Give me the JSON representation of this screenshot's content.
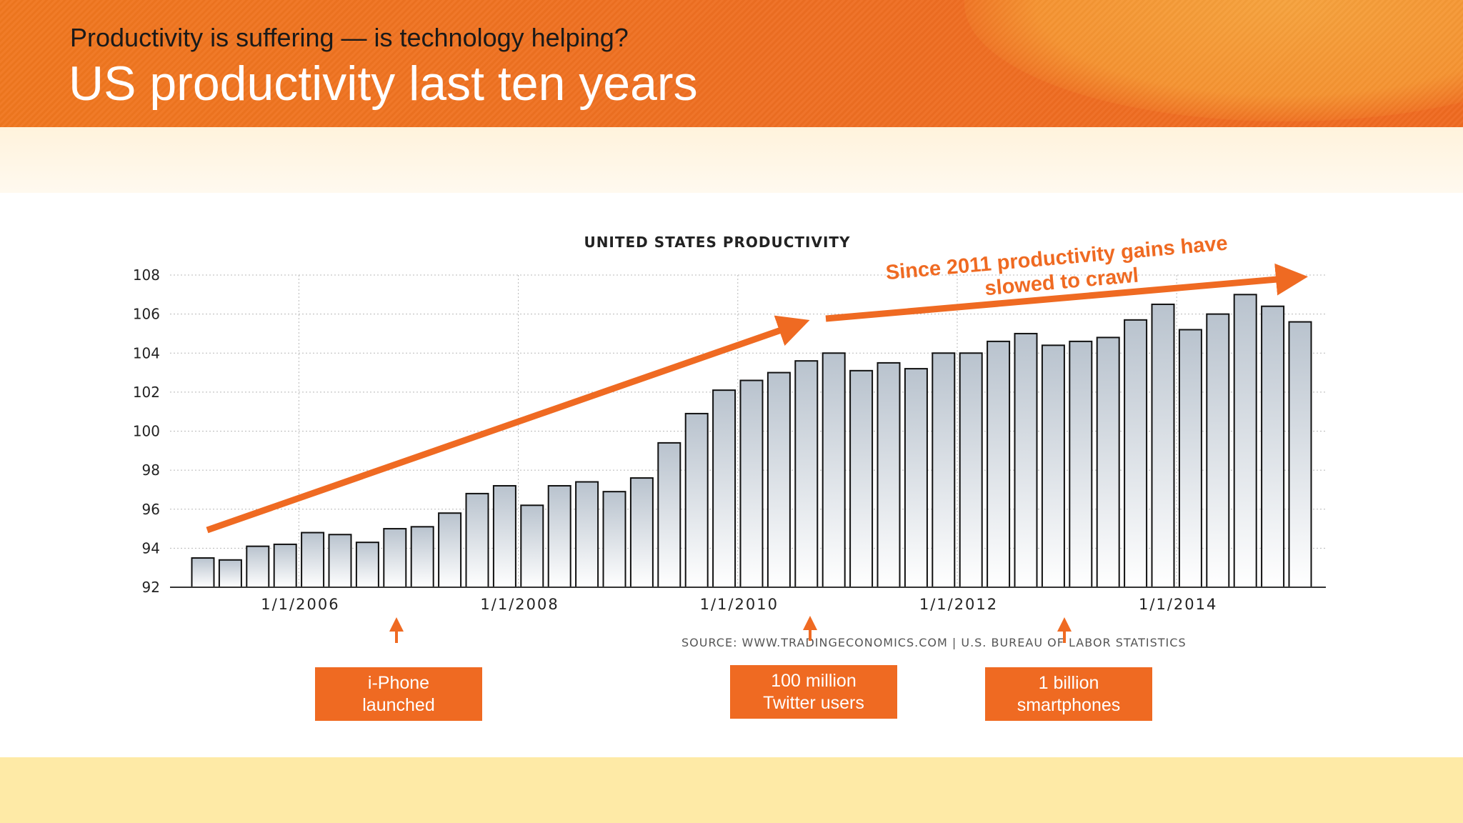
{
  "header": {
    "subtitle": "Productivity is suffering — is technology helping?",
    "title": "US productivity last ten years"
  },
  "chart_data": {
    "type": "bar",
    "title": "UNITED STATES PRODUCTIVITY",
    "source": "SOURCE:  WWW.TRADINGECONOMICS.COM  |  U.S.  BUREAU  OF  LABOR  STATISTICS",
    "xlabel": "",
    "ylabel": "",
    "ylim": [
      92,
      108
    ],
    "yticks": [
      "108",
      "106",
      "104",
      "102",
      "100",
      "98",
      "96",
      "94",
      "92"
    ],
    "ytick_values": [
      108,
      106,
      104,
      102,
      100,
      98,
      96,
      94,
      92
    ],
    "xtick_labels": [
      "1/1/2006",
      "1/1/2008",
      "1/1/2010",
      "1/1/2012",
      "1/1/2014"
    ],
    "xtick_quarter_index": [
      3.5,
      11.5,
      19.5,
      27.5,
      35.5
    ],
    "quarters_count": 41,
    "values": [
      93.5,
      93.4,
      94.1,
      94.2,
      94.8,
      94.7,
      94.3,
      95.0,
      95.1,
      95.8,
      96.8,
      97.2,
      96.2,
      97.2,
      97.4,
      96.9,
      97.6,
      99.4,
      100.9,
      102.1,
      102.6,
      103.0,
      103.6,
      104.0,
      103.1,
      103.5,
      103.2,
      104.0,
      104.0,
      104.6,
      105.0,
      104.4,
      104.6,
      104.8,
      105.7,
      106.5,
      105.2,
      106.0,
      107.0,
      106.4,
      105.6
    ],
    "trend_annotation": "Since 2011 productivity gains have slowed to crawl"
  },
  "callouts": [
    {
      "line1": "i-Phone",
      "line2": "launched"
    },
    {
      "line1": "100 million",
      "line2": "Twitter users"
    },
    {
      "line1": "1 billion",
      "line2": "smartphones"
    }
  ],
  "colors": {
    "accent": "#ef6a22",
    "bar_top": "#b9c3ce",
    "bar_bottom": "#ffffff",
    "bottom_band": "#feeaa6"
  }
}
